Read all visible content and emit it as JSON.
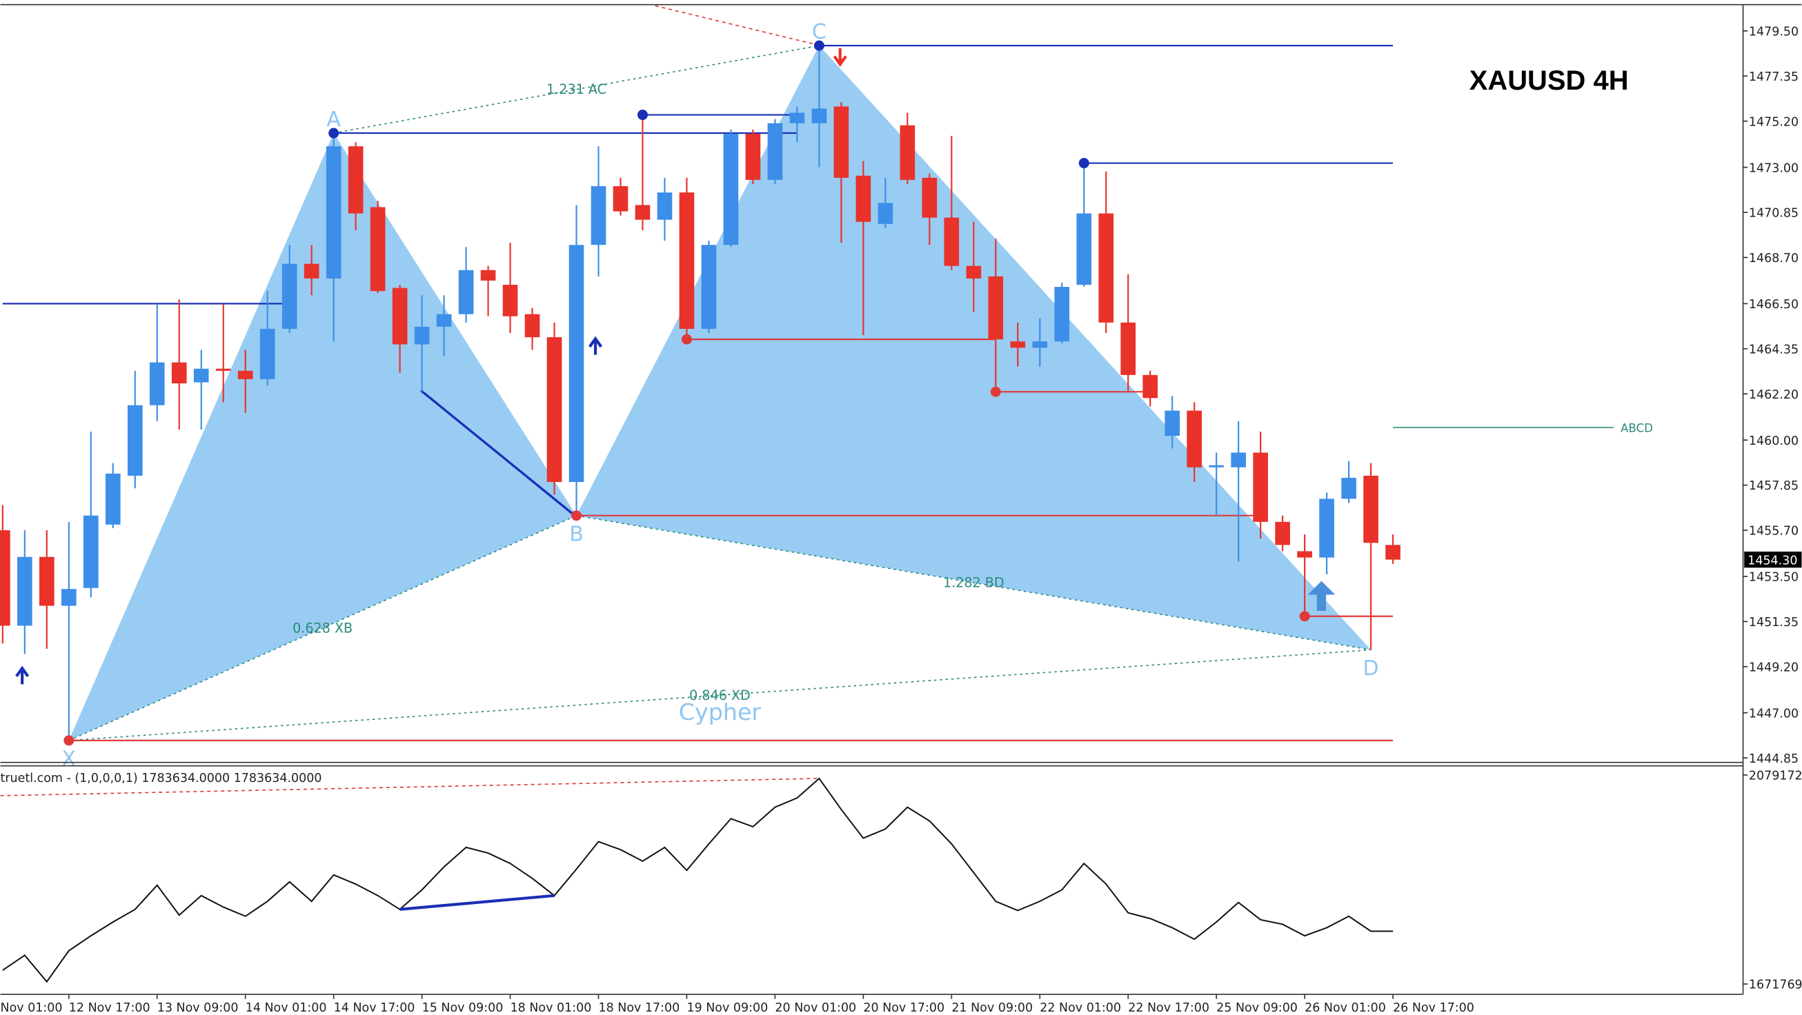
{
  "chart_data": {
    "type": "candlestick",
    "title": "XAUUSD 4H",
    "up_color": "#3d8ee8",
    "down_color": "#e8322a",
    "ylim": [
      1444.69,
      1480.7
    ],
    "yticks": [
      {
        "value": 1479.5,
        "label": "1479.50"
      },
      {
        "value": 1477.35,
        "label": "1477.35"
      },
      {
        "value": 1475.2,
        "label": "1475.20"
      },
      {
        "value": 1473,
        "label": "1473.00"
      },
      {
        "value": 1470.85,
        "label": "1470.85"
      },
      {
        "value": 1468.7,
        "label": "1468.70"
      },
      {
        "value": 1466.5,
        "label": "1466.50"
      },
      {
        "value": 1464.35,
        "label": "1464.35"
      },
      {
        "value": 1462.2,
        "label": "1462.20"
      },
      {
        "value": 1460,
        "label": "1460.00"
      },
      {
        "value": 1457.85,
        "label": "1457.85"
      },
      {
        "value": 1455.7,
        "label": "1455.70"
      },
      {
        "value": 1453.5,
        "label": "1453.50"
      },
      {
        "value": 1451.35,
        "label": "1451.35"
      },
      {
        "value": 1449.2,
        "label": "1449.20"
      },
      {
        "value": 1447,
        "label": "1447.00"
      },
      {
        "value": 1444.85,
        "label": "1444.85"
      }
    ],
    "last_price": {
      "value": 1454.3,
      "label": "1454.30"
    },
    "x_edge_label": "Nov 01:00",
    "categories": [
      null,
      null,
      null,
      "12 Nov 17:00",
      null,
      null,
      null,
      "13 Nov 09:00",
      null,
      null,
      null,
      "14 Nov 01:00",
      null,
      null,
      null,
      "14 Nov 17:00",
      null,
      null,
      null,
      "15 Nov 09:00",
      null,
      null,
      null,
      "18 Nov 01:00",
      null,
      null,
      null,
      "18 Nov 17:00",
      null,
      null,
      null,
      "19 Nov 09:00",
      null,
      null,
      null,
      "20 Nov 01:00",
      null,
      null,
      null,
      "20 Nov 17:00",
      null,
      null,
      null,
      "21 Nov 09:00",
      null,
      null,
      null,
      "22 Nov 01:00",
      null,
      null,
      null,
      "22 Nov 17:00",
      null,
      null,
      null,
      "25 Nov 09:00",
      null,
      null,
      null,
      "26 Nov 01:00",
      null,
      null,
      null,
      "26 Nov 17:00"
    ],
    "open": [
      1455.7,
      1451.15,
      1454.43,
      1452.1,
      1452.95,
      1455.97,
      1458.3,
      1461.66,
      1463.7,
      1462.75,
      1463.4,
      1463.3,
      1462.9,
      1465.3,
      1468.4,
      1467.7,
      1474.0,
      1471.1,
      1467.25,
      1464.56,
      1465.4,
      1466.0,
      1468.1,
      1467.4,
      1466.0,
      1464.9,
      1458.0,
      1469.3,
      1472.1,
      1471.2,
      1470.5,
      1471.8,
      1465.3,
      1469.3,
      1474.6,
      1472.4,
      1475.1,
      1475.1,
      1475.9,
      1472.6,
      1470.3,
      1475.0,
      1472.5,
      1470.6,
      1468.3,
      1467.8,
      1464.7,
      1464.4,
      1464.7,
      1467.4,
      1470.8,
      1465.6,
      1463.1,
      1460.2,
      1461.4,
      1458.7,
      1458.7,
      1459.4,
      1456.1,
      1454.7,
      1454.4,
      1457.2,
      1458.3,
      1455.0
    ],
    "high": [
      1456.9,
      1455.7,
      1455.7,
      1456.1,
      1460.4,
      1458.9,
      1463.3,
      1466.5,
      1466.7,
      1464.3,
      1466.5,
      1464.3,
      1467.1,
      1469.3,
      1469.3,
      1474.63,
      1474.2,
      1471.4,
      1467.4,
      1466.9,
      1466.9,
      1469.2,
      1468.3,
      1469.4,
      1466.3,
      1465.6,
      1471.2,
      1474.0,
      1472.5,
      1475.5,
      1472.5,
      1472.5,
      1469.5,
      1474.8,
      1474.8,
      1475.3,
      1475.9,
      1478.8,
      1476.1,
      1473.3,
      1472.5,
      1475.6,
      1472.7,
      1474.5,
      1470.4,
      1469.6,
      1465.6,
      1465.8,
      1467.5,
      1473.2,
      1472.8,
      1467.9,
      1463.3,
      1462.1,
      1461.8,
      1459.4,
      1460.9,
      1460.4,
      1456.4,
      1455.5,
      1457.5,
      1459.0,
      1458.9,
      1455.5
    ],
    "low": [
      1450.3,
      1449.8,
      1450.05,
      1445.68,
      1452.5,
      1455.8,
      1457.7,
      1460.9,
      1460.5,
      1460.5,
      1461.8,
      1461.3,
      1462.6,
      1465.1,
      1466.9,
      1464.7,
      1470.0,
      1467.0,
      1463.2,
      1462.3,
      1464.0,
      1465.6,
      1465.9,
      1465.1,
      1464.3,
      1457.4,
      1456.4,
      1467.8,
      1470.7,
      1470.0,
      1469.5,
      1464.8,
      1465.1,
      1469.2,
      1472.2,
      1472.2,
      1474.2,
      1473.0,
      1469.4,
      1465.0,
      1470.1,
      1472.2,
      1469.3,
      1468.1,
      1466.1,
      1462.3,
      1463.5,
      1463.5,
      1464.6,
      1467.3,
      1465.1,
      1462.3,
      1461.6,
      1459.6,
      1458.0,
      1456.4,
      1454.2,
      1455.3,
      1454.7,
      1451.6,
      1453.6,
      1457.0,
      1450.0,
      1454.1
    ],
    "close": [
      1451.15,
      1454.43,
      1452.1,
      1452.9,
      1456.4,
      1458.4,
      1461.66,
      1463.7,
      1462.7,
      1463.4,
      1463.3,
      1462.9,
      1465.3,
      1468.4,
      1467.7,
      1474.0,
      1470.8,
      1467.1,
      1464.56,
      1465.4,
      1466.0,
      1468.1,
      1467.6,
      1465.9,
      1464.9,
      1458.0,
      1469.3,
      1472.1,
      1470.9,
      1470.5,
      1471.8,
      1465.3,
      1469.3,
      1474.6,
      1472.4,
      1475.1,
      1475.6,
      1475.8,
      1472.5,
      1470.4,
      1471.3,
      1472.4,
      1470.6,
      1468.3,
      1467.7,
      1464.8,
      1464.4,
      1464.7,
      1467.3,
      1470.8,
      1465.6,
      1463.1,
      1462.0,
      1461.4,
      1458.7,
      1458.8,
      1459.4,
      1456.1,
      1455.0,
      1454.4,
      1457.2,
      1458.2,
      1455.1,
      1454.3
    ],
    "levels": [
      {
        "price": 1478.8,
        "start": 37,
        "end": 63,
        "color": "#1a2fb5"
      },
      {
        "price": 1474.63,
        "start": 15,
        "end": 36,
        "color": "#1a2fb5"
      },
      {
        "price": 1475.5,
        "start": 29,
        "end": 36,
        "color": "#1a2fb5"
      },
      {
        "price": 1466.5,
        "start": 0,
        "end": 13,
        "color": "#1a2fb5"
      },
      {
        "price": 1473.2,
        "start": 49,
        "end": 63,
        "color": "#1a2fb5"
      },
      {
        "price": 1456.4,
        "start": 26,
        "end": 57,
        "color": "#e0393a"
      },
      {
        "price": 1464.8,
        "start": 31,
        "end": 45,
        "color": "#e0393a"
      },
      {
        "price": 1462.3,
        "start": 45,
        "end": 52,
        "color": "#e0393a"
      },
      {
        "price": 1451.6,
        "start": 59,
        "end": 63,
        "color": "#e0393a"
      },
      {
        "price": 1445.68,
        "start": 3,
        "end": 63,
        "color": "#e0393a"
      }
    ],
    "abcd": {
      "label": "ABCD",
      "price": 1460.6,
      "start": 63,
      "end": 73,
      "color": "#2a8a7a"
    },
    "pattern": {
      "name": "Cypher",
      "color": "#8ec6f2",
      "points": [
        {
          "label": "X",
          "index": 3,
          "price": 1445.68
        },
        {
          "label": "A",
          "index": 15,
          "price": 1474.63
        },
        {
          "label": "B",
          "index": 26,
          "price": 1456.4
        },
        {
          "label": "C",
          "index": 37,
          "price": 1478.8
        },
        {
          "label": "D",
          "index": 62,
          "price": 1450.0
        }
      ],
      "ratios": [
        {
          "label": "0.628 XB",
          "from": 0,
          "to": 2
        },
        {
          "label": "1.231 AC",
          "from": 1,
          "to": 3
        },
        {
          "label": "1.282 BD",
          "from": 2,
          "to": 4
        },
        {
          "label": "0.846 XD",
          "from": 0,
          "to": 4
        }
      ]
    },
    "indicator": {
      "label": "truetl.com - (1,0,0,0,1) 1783634.0000 1783634.0000",
      "y2lim": [
        1651622,
        2097084
      ],
      "y2ticks": [
        {
          "value": 2079172,
          "label": "2079172."
        },
        {
          "value": 1671769,
          "label": "1671769."
        }
      ],
      "values": [
        1698631,
        1727732,
        1676246,
        1736686,
        1765786,
        1792648,
        1817272,
        1864280,
        1806079,
        1844134,
        1821749,
        1803841,
        1832941,
        1870996,
        1832941,
        1884427,
        1866519,
        1844134,
        1817272,
        1855326,
        1900096,
        1938151,
        1926958,
        1906812,
        1877711,
        1844134,
        1895619,
        1949343,
        1933674,
        1911289,
        1938151,
        1893381,
        1944866,
        1994113,
        1978444,
        2016498,
        2034406,
        2072461,
        2012021,
        1956059,
        1973967,
        2016498,
        1989636,
        1944866,
        1888904,
        1832941,
        1815033,
        1832941,
        1855326,
        1906812,
        1866519,
        1810556,
        1799364,
        1781456,
        1759071,
        1792648,
        1830703,
        1797125,
        1788171,
        1765786,
        1781456,
        1803841,
        1774740,
        1774740
      ]
    }
  }
}
